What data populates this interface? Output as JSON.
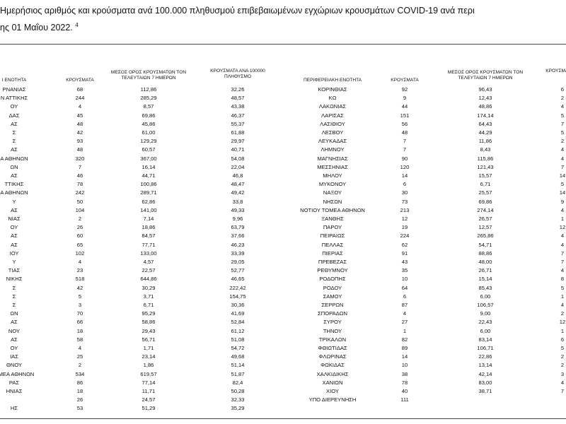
{
  "title": {
    "line1": "Ημερήσιος αριθμός και κρούσματα ανά 100.000 πληθυσμού επιβεβαιωμένων εγχώριων κρουσμάτων COVID-19 ανά περι",
    "line2": "ης 01 Μαΐου 2022.",
    "note": "4"
  },
  "left": {
    "header": [
      "Ι ΕΝΟΤΗΤΑ",
      "ΚΡΟΥΣΜΑΤΑ",
      "ΜΕΣΟΣ ΟΡΟΣ ΚΡΟΥΣΜΑΤΩΝ ΤΟΝ ΤΕΛΕΥΤΑΙΩΝ 7 ΗΜΕΡΩΝ",
      "ΚΡΟΥΣΜΑΤΑ ΑΝΑ 100000 ΠΛΗΘΥΣΜΟ"
    ],
    "rows": [
      [
        "ΡΝΑΝΙΑΣ",
        "68",
        "112,86",
        "32,26"
      ],
      [
        "Ν ΑΤΤΙΚΗΣ",
        "244",
        "285,29",
        "48,57"
      ],
      [
        "ΟΥ",
        "4",
        "8,57",
        "43,38"
      ],
      [
        "ΔΑΣ",
        "45",
        "69,86",
        "46,37"
      ],
      [
        "ΑΣ",
        "48",
        "45,86",
        "55,37"
      ],
      [
        "Σ",
        "42",
        "61,00",
        "61,88"
      ],
      [
        "Σ",
        "93",
        "129,29",
        "29,97"
      ],
      [
        "ΑΣ",
        "48",
        "60,57",
        "40,71"
      ],
      [
        "Α ΑΘΗΝΩΝ",
        "320",
        "367,00",
        "54,08"
      ],
      [
        "ΩΝ",
        "7",
        "16,14",
        "22,04"
      ],
      [
        "ΑΣ",
        "46",
        "44,71",
        "46,8"
      ],
      [
        "ΤΤΙΚΗΣ",
        "78",
        "100,86",
        "48,47"
      ],
      [
        "Α ΑΘΗΝΩΝ",
        "242",
        "289,71",
        "49,42"
      ],
      [
        "Υ",
        "50",
        "62,86",
        "33,8"
      ],
      [
        "ΑΣ",
        "104",
        "141,00",
        "49,33"
      ],
      [
        "ΝΙΑΣ",
        "2",
        "7,14",
        "9,96"
      ],
      [
        "ΟΥ",
        "26",
        "18,86",
        "63,79"
      ],
      [
        "ΑΣ",
        "60",
        "84,57",
        "37,66"
      ],
      [
        "ΑΣ",
        "65",
        "77,71",
        "46,23"
      ],
      [
        "ΙΟΥ",
        "102",
        "133,00",
        "33,39"
      ],
      [
        "Υ",
        "4",
        "4,57",
        "29,05"
      ],
      [
        "ΤΙΑΣ",
        "23",
        "22,57",
        "52,77"
      ],
      [
        "ΝΙΚΗΣ",
        "518",
        "644,86",
        "46,65"
      ],
      [
        "Σ",
        "42",
        "30,29",
        "222,42"
      ],
      [
        "Σ",
        "5",
        "3,71",
        "154,75"
      ],
      [
        "Σ",
        "3",
        "6,71",
        "30,36"
      ],
      [
        "ΩΝ",
        "70",
        "95,29",
        "41,69"
      ],
      [
        "ΑΣ",
        "66",
        "58,86",
        "52,84"
      ],
      [
        "ΝΟΥ",
        "18",
        "29,43",
        "61,12"
      ],
      [
        "ΑΣ",
        "58",
        "56,71",
        "51,08"
      ],
      [
        "ΟΥ",
        "4",
        "1,71",
        "54,72"
      ],
      [
        "ΙΑΣ",
        "25",
        "23,14",
        "49,68"
      ],
      [
        "ΘΝΟΥ",
        "2",
        "1,86",
        "51,14"
      ],
      [
        "ΟΜΕΑ ΑΘΗΝΩΝ",
        "534",
        "619,57",
        "51,87"
      ],
      [
        "ΡΑΣ",
        "86",
        "77,14",
        "82,4"
      ],
      [
        "ΗΝΙΑΣ",
        "18",
        "11,71",
        "50,28"
      ],
      [
        null,
        "26",
        "24,57",
        "32,33"
      ],
      [
        "ΗΣ",
        "53",
        "51,29",
        "35,29"
      ]
    ]
  },
  "right": {
    "header": [
      "ΠΕΡΙΦΕΡΕΙΑΚΗ ΕΝΟΤΗΤΑ",
      "ΚΡΟΥΣΜΑΤΑ",
      "ΜΕΣΟΣ ΟΡΟΣ ΚΡΟΥΣΜΑΤΩΝ ΤΟΝ ΤΕΛΕΥΤΑΙΩΝ 7 ΗΜΕΡΩΝ",
      "ΚΡΟΥΣΜΑ ΠΛΗ"
    ],
    "rows": [
      [
        "ΚΟΡΙΝΘΙΑΣ",
        "92",
        "96,43",
        "6"
      ],
      [
        "ΚΩ",
        "9",
        "12,43",
        "2"
      ],
      [
        "ΛΑΚΩΝΙΑΣ",
        "44",
        "48,86",
        "4"
      ],
      [
        "ΛΑΡΙΣΑΣ",
        "151",
        "174,14",
        "5"
      ],
      [
        "ΛΑΣΙΘΙΟΥ",
        "56",
        "64,43",
        "7"
      ],
      [
        "ΛΕΣΒΟΥ",
        "48",
        "44,29",
        "5"
      ],
      [
        "ΛΕΥΚΑΔΑΣ",
        "7",
        "11,86",
        "2"
      ],
      [
        "ΛΗΜΝΟΥ",
        "7",
        "8,43",
        "4"
      ],
      [
        "ΜΑΓΝΗΣΙΑΣ",
        "90",
        "115,86",
        "4"
      ],
      [
        "ΜΕΣΣΗΝΙΑΣ",
        "120",
        "121,43",
        "7"
      ],
      [
        "ΜΗΛΟΥ",
        "14",
        "15,57",
        "14"
      ],
      [
        "ΜΥΚΟΝΟΥ",
        "6",
        "6,71",
        "5"
      ],
      [
        "ΝΑΞΟΥ",
        "30",
        "25,57",
        "14"
      ],
      [
        "ΝΗΣΩΝ",
        "73",
        "69,86",
        "9"
      ],
      [
        "ΝΟΤΙΟΥ ΤΟΜΕΑ ΑΘΗΝΩΝ",
        "213",
        "274,14",
        "4"
      ],
      [
        "ΞΑΝΘΗΣ",
        "12",
        "26,57",
        "1"
      ],
      [
        "ΠΑΡΟΥ",
        "19",
        "12,57",
        "12"
      ],
      [
        "ΠΕΙΡΑΙΩΣ",
        "224",
        "265,86",
        "4"
      ],
      [
        "ΠΕΛΛΑΣ",
        "62",
        "54,71",
        "4"
      ],
      [
        "ΠΙΕΡΙΑΣ",
        "91",
        "88,86",
        "7"
      ],
      [
        "ΠΡΕΒΕΖΑΣ",
        "43",
        "48,00",
        "7"
      ],
      [
        "ΡΕΘΥΜΝΟΥ",
        "35",
        "26,71",
        "4"
      ],
      [
        "ΡΟΔΟΠΗΣ",
        "10",
        "15,14",
        "8"
      ],
      [
        "ΡΟΔΟΥ",
        "64",
        "85,43",
        "5"
      ],
      [
        "ΣΑΜΟΥ",
        "6",
        "6,00",
        "1"
      ],
      [
        "ΣΕΡΡΩΝ",
        "87",
        "106,57",
        "4"
      ],
      [
        "ΣΠΟΡΑΔΩΝ",
        "4",
        "9,00",
        "2"
      ],
      [
        "ΣΥΡΟΥ",
        "27",
        "22,43",
        "12"
      ],
      [
        "ΤΗΝΟΥ",
        "1",
        "6,00",
        "1"
      ],
      [
        "ΤΡΙΚΑΛΩΝ",
        "82",
        "83,14",
        "6"
      ],
      [
        "ΦΘΙΩΤΙΔΑΣ",
        "89",
        "106,71",
        "5"
      ],
      [
        "ΦΛΩΡΙΝΑΣ",
        "14",
        "22,86",
        "2"
      ],
      [
        "ΦΩΚΙΔΑΣ",
        "10",
        "13,14",
        "2"
      ],
      [
        "ΧΑΛΚΙΔΙΚΗΣ",
        "38",
        "42,14",
        "3"
      ],
      [
        "ΧΑΝΙΩΝ",
        "78",
        "83,00",
        "4"
      ],
      [
        "ΧΙΟΥ",
        "40",
        "38,71",
        "7"
      ],
      [
        "ΥΠΟ ΔΙΕΡΕΥΝΗΣΗ",
        "111"
      ]
    ]
  }
}
